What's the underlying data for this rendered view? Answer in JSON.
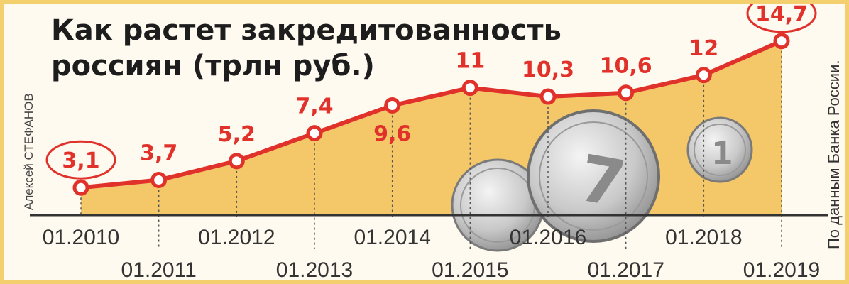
{
  "title_line1": "Как растет закредитованность",
  "title_line2": "россиян (трлн руб.)",
  "author": "Алексей СТЕФАНОВ",
  "source": "По данным Банка России.",
  "colors": {
    "line": "#e0322b",
    "area": "#f4c869",
    "label": "#e0322b",
    "axis": "#333333"
  },
  "chart_data": {
    "type": "area",
    "title": "Как растет закредитованность россиян (трлн руб.)",
    "categories": [
      "01.2010",
      "01.2011",
      "01.2012",
      "01.2013",
      "01.2014",
      "01.2015",
      "01.2016",
      "01.2017",
      "01.2018",
      "01.2019"
    ],
    "values": [
      3.1,
      3.7,
      5.2,
      7.4,
      9.6,
      11,
      10.3,
      10.6,
      12,
      14.7
    ],
    "data_labels": [
      "3,1",
      "3,7",
      "5,2",
      "7,4",
      "9,6",
      "11",
      "10,3",
      "10,6",
      "12",
      "14,7"
    ],
    "highlighted": [
      "3,1",
      "14,7"
    ],
    "ylim": [
      0,
      16
    ],
    "grid": false,
    "legend": "none"
  }
}
